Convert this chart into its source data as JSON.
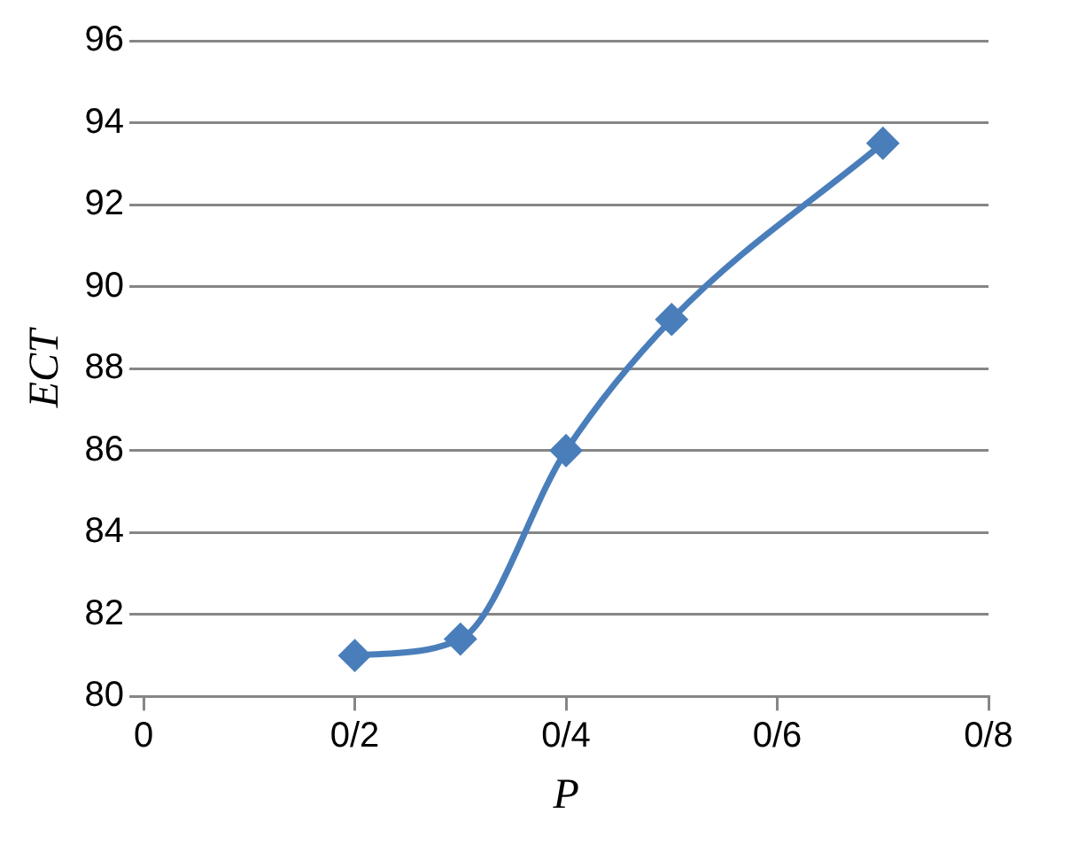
{
  "chart_data": {
    "type": "line",
    "xlabel": "P",
    "ylabel": "ECT",
    "categories": [
      "0",
      null,
      "0/2",
      null,
      "0/4",
      null,
      "0/6",
      null,
      "0/8"
    ],
    "series": [
      {
        "color": "#4a7ebb",
        "values": [
          null,
          null,
          81,
          81.4,
          86,
          89.2,
          null,
          93.5,
          null
        ]
      }
    ],
    "ylim": [
      80,
      96
    ],
    "yticks": [
      80,
      82,
      84,
      86,
      88,
      90,
      92,
      94,
      96
    ],
    "grid": "y",
    "legend": false,
    "marker": "diamond",
    "line_style": "solid"
  }
}
